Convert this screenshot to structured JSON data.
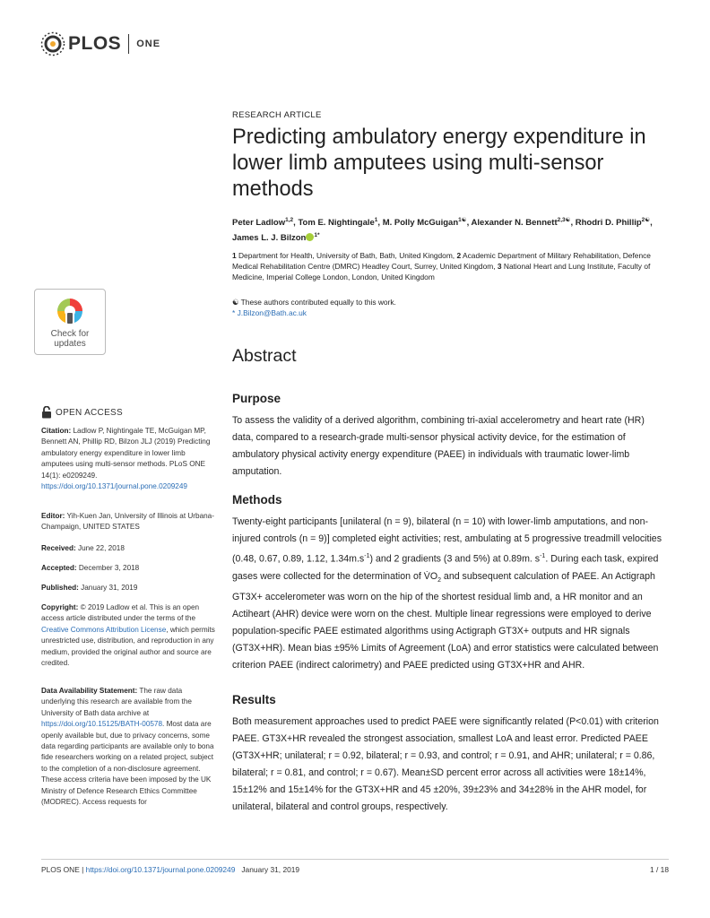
{
  "header": {
    "logo_text": "PLOS",
    "journal": "ONE"
  },
  "badge": {
    "line1": "Check for",
    "line2": "updates"
  },
  "article": {
    "type": "RESEARCH ARTICLE",
    "title": "Predicting ambulatory energy expenditure in lower limb amputees using multi-sensor methods",
    "authors": [
      {
        "name": "Peter Ladlow",
        "sup": "1,2"
      },
      {
        "name": "Tom E. Nightingale",
        "sup": "1"
      },
      {
        "name": "M. Polly McGuigan",
        "sup": "1☯"
      },
      {
        "name": "Alexander N. Bennett",
        "sup": "2,3☯"
      },
      {
        "name": "Rhodri D. Phillip",
        "sup": "2☯"
      },
      {
        "name": "James L. J. Bilzon",
        "sup": "1*"
      }
    ],
    "affiliations": [
      {
        "num": "1",
        "text": "Department for Health, University of Bath, Bath, United Kingdom,"
      },
      {
        "num": "2",
        "text": "Academic Department of Military Rehabilitation, Defence Medical Rehabilitation Centre (DMRC) Headley Court, Surrey, United Kingdom,"
      },
      {
        "num": "3",
        "text": "National Heart and Lung Institute, Faculty of Medicine, Imperial College London, London, United Kingdom"
      }
    ],
    "contrib_note": "☯ These authors contributed equally to this work.",
    "corresponding": "* J.Bilzon@Bath.ac.uk"
  },
  "sidebar": {
    "open_access": "OPEN ACCESS",
    "citation_label": "Citation:",
    "citation_text": "Ladlow P, Nightingale TE, McGuigan MP, Bennett AN, Phillip RD, Bilzon JLJ (2019) Predicting ambulatory energy expenditure in lower limb amputees using multi-sensor methods. PLoS ONE 14(1): e0209249.",
    "citation_doi": "https://doi.org/10.1371/journal.pone.0209249",
    "editor_label": "Editor:",
    "editor_text": "Yih-Kuen Jan, University of Illinois at Urbana-Champaign, UNITED STATES",
    "received_label": "Received:",
    "received": "June 22, 2018",
    "accepted_label": "Accepted:",
    "accepted": "December 3, 2018",
    "published_label": "Published:",
    "published": "January 31, 2019",
    "copyright_label": "Copyright:",
    "copyright_text1": "© 2019 Ladlow et al. This is an open access article distributed under the terms of the",
    "copyright_link": "Creative Commons Attribution License",
    "copyright_text2": ", which permits unrestricted use, distribution, and reproduction in any medium, provided the original author and source are credited.",
    "data_label": "Data Availability Statement:",
    "data_text1": "The raw data underlying this research are available from the University of Bath data archive at",
    "data_link": "https://doi.org/10.15125/BATH-00578",
    "data_text2": ". Most data are openly available but, due to privacy concerns, some data regarding participants are available only to bona fide researchers working on a related project, subject to the completion of a non-disclosure agreement. These access criteria have been imposed by the UK Ministry of Defence Research Ethics Committee (MODREC). Access requests for"
  },
  "abstract": {
    "heading": "Abstract",
    "purpose_h": "Purpose",
    "purpose": "To assess the validity of a derived algorithm, combining tri-axial accelerometry and heart rate (HR) data, compared to a research-grade multi-sensor physical activity device, for the estimation of ambulatory physical activity energy expenditure (PAEE) in individuals with traumatic lower-limb amputation.",
    "methods_h": "Methods",
    "methods_1": "Twenty-eight participants [unilateral (n = 9), bilateral (n = 10) with lower-limb amputations, and non-injured controls (n = 9)] completed eight activities; rest, ambulating at 5 progressive treadmill velocities (0.48, 0.67, 0.89, 1.12, 1.34m.s",
    "methods_sup1": "-1",
    "methods_2": ") and 2 gradients (3 and 5%) at 0.89m. s",
    "methods_sup2": "-1",
    "methods_3": ". During each task, expired gases were collected for the determination of V̇O",
    "methods_sub": "2",
    "methods_4": " and subsequent calculation of PAEE. An Actigraph GT3X+ accelerometer was worn on the hip of the shortest residual limb and, a HR monitor and an Actiheart (AHR) device were worn on the chest. Multiple linear regressions were employed to derive population-specific PAEE estimated algorithms using Actigraph GT3X+ outputs and HR signals (GT3X+HR). Mean bias ±95% Limits of Agreement (LoA) and error statistics were calculated between criterion PAEE (indirect calorimetry) and PAEE predicted using GT3X+HR and AHR.",
    "results_h": "Results",
    "results": "Both measurement approaches used to predict PAEE were significantly related (P<0.01) with criterion PAEE. GT3X+HR revealed the strongest association, smallest LoA and least error. Predicted PAEE (GT3X+HR; unilateral; r = 0.92, bilateral; r = 0.93, and control; r = 0.91, and AHR; unilateral; r = 0.86, bilateral; r = 0.81, and control; r = 0.67). Mean±SD percent error across all activities were 18±14%, 15±12% and 15±14% for the GT3X+HR and 45 ±20%, 39±23% and 34±28% in the AHR model, for unilateral, bilateral and control groups, respectively."
  },
  "footer": {
    "journal": "PLOS ONE",
    "sep": "|",
    "doi": "https://doi.org/10.1371/journal.pone.0209249",
    "date": "January 31, 2019",
    "page": "1 / 18"
  },
  "colors": {
    "link": "#2a6db5",
    "orcid": "#a6ce39"
  }
}
